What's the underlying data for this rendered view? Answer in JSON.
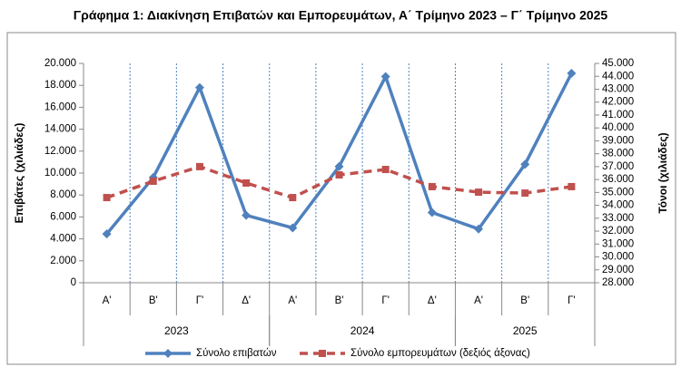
{
  "chart_data": {
    "type": "line",
    "title": "Γράφημα 1: Διακίνηση Επιβατών και Εμπορευμάτων, Α΄ Τρίμηνο 2023 – Γ΄ Τρίμηνο 2025",
    "ylabel": "Επιβάτες  (χιλιάδες)",
    "y2label": "Τόνοι  (χιλιάδες)",
    "categories": [
      "Α'",
      "Β'",
      "Γ'",
      "Δ'",
      "Α'",
      "Β'",
      "Γ'",
      "Δ'",
      "Α'",
      "Β'",
      "Γ'"
    ],
    "category_groups": [
      {
        "label": "2023",
        "count": 4
      },
      {
        "label": "2024",
        "count": 4
      },
      {
        "label": "2025",
        "count": 3
      }
    ],
    "series": [
      {
        "name": "Σύνολο επιβατών",
        "color": "#4f81bd",
        "marker": "diamond",
        "dashed": false,
        "values": [
          4450,
          9600,
          17800,
          6150,
          5000,
          10600,
          18800,
          6400,
          4900,
          10800,
          19100
        ]
      },
      {
        "name": "Σύνολο εμπορευμάτων (δεξιός άξονας)",
        "color": "#c0504d",
        "marker": "square",
        "dashed": true,
        "axis": "y2",
        "values": [
          34600,
          35870,
          37000,
          35730,
          34600,
          36360,
          36780,
          35450,
          35020,
          34950,
          35450
        ]
      }
    ],
    "ylim": [
      0,
      20000
    ],
    "yticks": [
      0,
      {
        "value": 2000,
        "label": "2.000"
      },
      {
        "value": 4000,
        "label": "4.000"
      },
      {
        "value": 6000,
        "label": "6.000"
      },
      {
        "value": 8000,
        "label": "8.000"
      },
      {
        "value": 10000,
        "label": "10.000"
      },
      {
        "value": 12000,
        "label": "12.000"
      },
      {
        "value": 14000,
        "label": "14.000"
      },
      {
        "value": 16000,
        "label": "16.000"
      },
      {
        "value": 18000,
        "label": "18.000"
      },
      {
        "value": 20000,
        "label": "20.000"
      }
    ],
    "y2lim": [
      28000,
      45000
    ],
    "y2ticks": [
      {
        "value": 28000,
        "label": "28.000"
      },
      {
        "value": 29000,
        "label": "29.000"
      },
      {
        "value": 30000,
        "label": "30.000"
      },
      {
        "value": 31000,
        "label": "31.000"
      },
      {
        "value": 32000,
        "label": "32.000"
      },
      {
        "value": 33000,
        "label": "33.000"
      },
      {
        "value": 34000,
        "label": "34.000"
      },
      {
        "value": 35000,
        "label": "35.000"
      },
      {
        "value": 36000,
        "label": "36.000"
      },
      {
        "value": 37000,
        "label": "37.000"
      },
      {
        "value": 38000,
        "label": "38.000"
      },
      {
        "value": 39000,
        "label": "39.000"
      },
      {
        "value": 40000,
        "label": "40.000"
      },
      {
        "value": 41000,
        "label": "41.000"
      },
      {
        "value": 42000,
        "label": "42.000"
      },
      {
        "value": 43000,
        "label": "43.000"
      },
      {
        "value": 44000,
        "label": "44.000"
      },
      {
        "value": 45000,
        "label": "45.000"
      }
    ],
    "vertical_grid": true,
    "legend": "bottom"
  }
}
